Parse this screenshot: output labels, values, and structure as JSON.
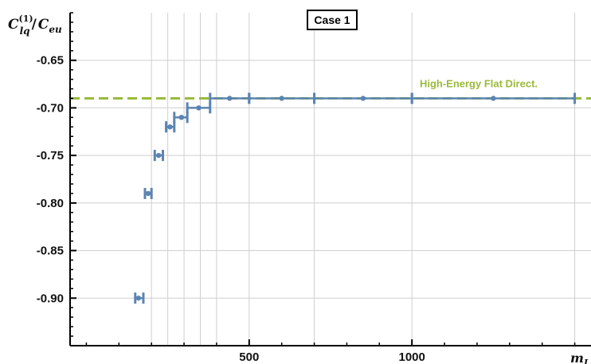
{
  "chart_data": {
    "type": "scatter",
    "title": "Case 1",
    "ylabel": {
      "base": "C",
      "sup": "(1)",
      "sub": "lq",
      "sep": "/",
      "den_base": "C",
      "den_sub": "eu"
    },
    "xlabel": "m",
    "xlabel_sub": "L",
    "xlim": [
      -50,
      1550
    ],
    "ylim": [
      -0.95,
      -0.6
    ],
    "x_ticks": [
      500,
      1000
    ],
    "x_tick_labels": [
      "500",
      "1000"
    ],
    "x_gridlines": [
      200,
      250,
      300,
      350,
      400,
      500,
      700,
      1000,
      1500
    ],
    "y_ticks": [
      -0.65,
      -0.7,
      -0.75,
      -0.8,
      -0.85,
      -0.9
    ],
    "y_tick_labels": [
      "-0.65",
      "-0.70",
      "-0.75",
      "-0.80",
      "-0.85",
      "-0.90"
    ],
    "grid": true,
    "reference_line": {
      "y": -0.69,
      "label": "High-Energy Flat Direct.",
      "color": "#9aba3a",
      "style": "dashed"
    },
    "series": [
      {
        "color": "#5b84b1",
        "points": [
          {
            "x": 160,
            "y": -0.9,
            "xmin": 150,
            "xmax": 175
          },
          {
            "x": 190,
            "y": -0.79,
            "xmin": 180,
            "xmax": 200
          },
          {
            "x": 222,
            "y": -0.75,
            "xmin": 210,
            "xmax": 235
          },
          {
            "x": 257,
            "y": -0.72,
            "xmin": 245,
            "xmax": 270
          },
          {
            "x": 292,
            "y": -0.71,
            "xmin": 270,
            "xmax": 310
          },
          {
            "x": 345,
            "y": -0.7,
            "xmin": 310,
            "xmax": 380
          },
          {
            "x": 440,
            "y": -0.69,
            "xmin": 380,
            "xmax": 500
          },
          {
            "x": 600,
            "y": -0.69,
            "xmin": 500,
            "xmax": 700
          },
          {
            "x": 850,
            "y": -0.69,
            "xmin": 700,
            "xmax": 1000
          },
          {
            "x": 1250,
            "y": -0.69,
            "xmin": 1000,
            "xmax": 1500
          }
        ]
      }
    ]
  }
}
